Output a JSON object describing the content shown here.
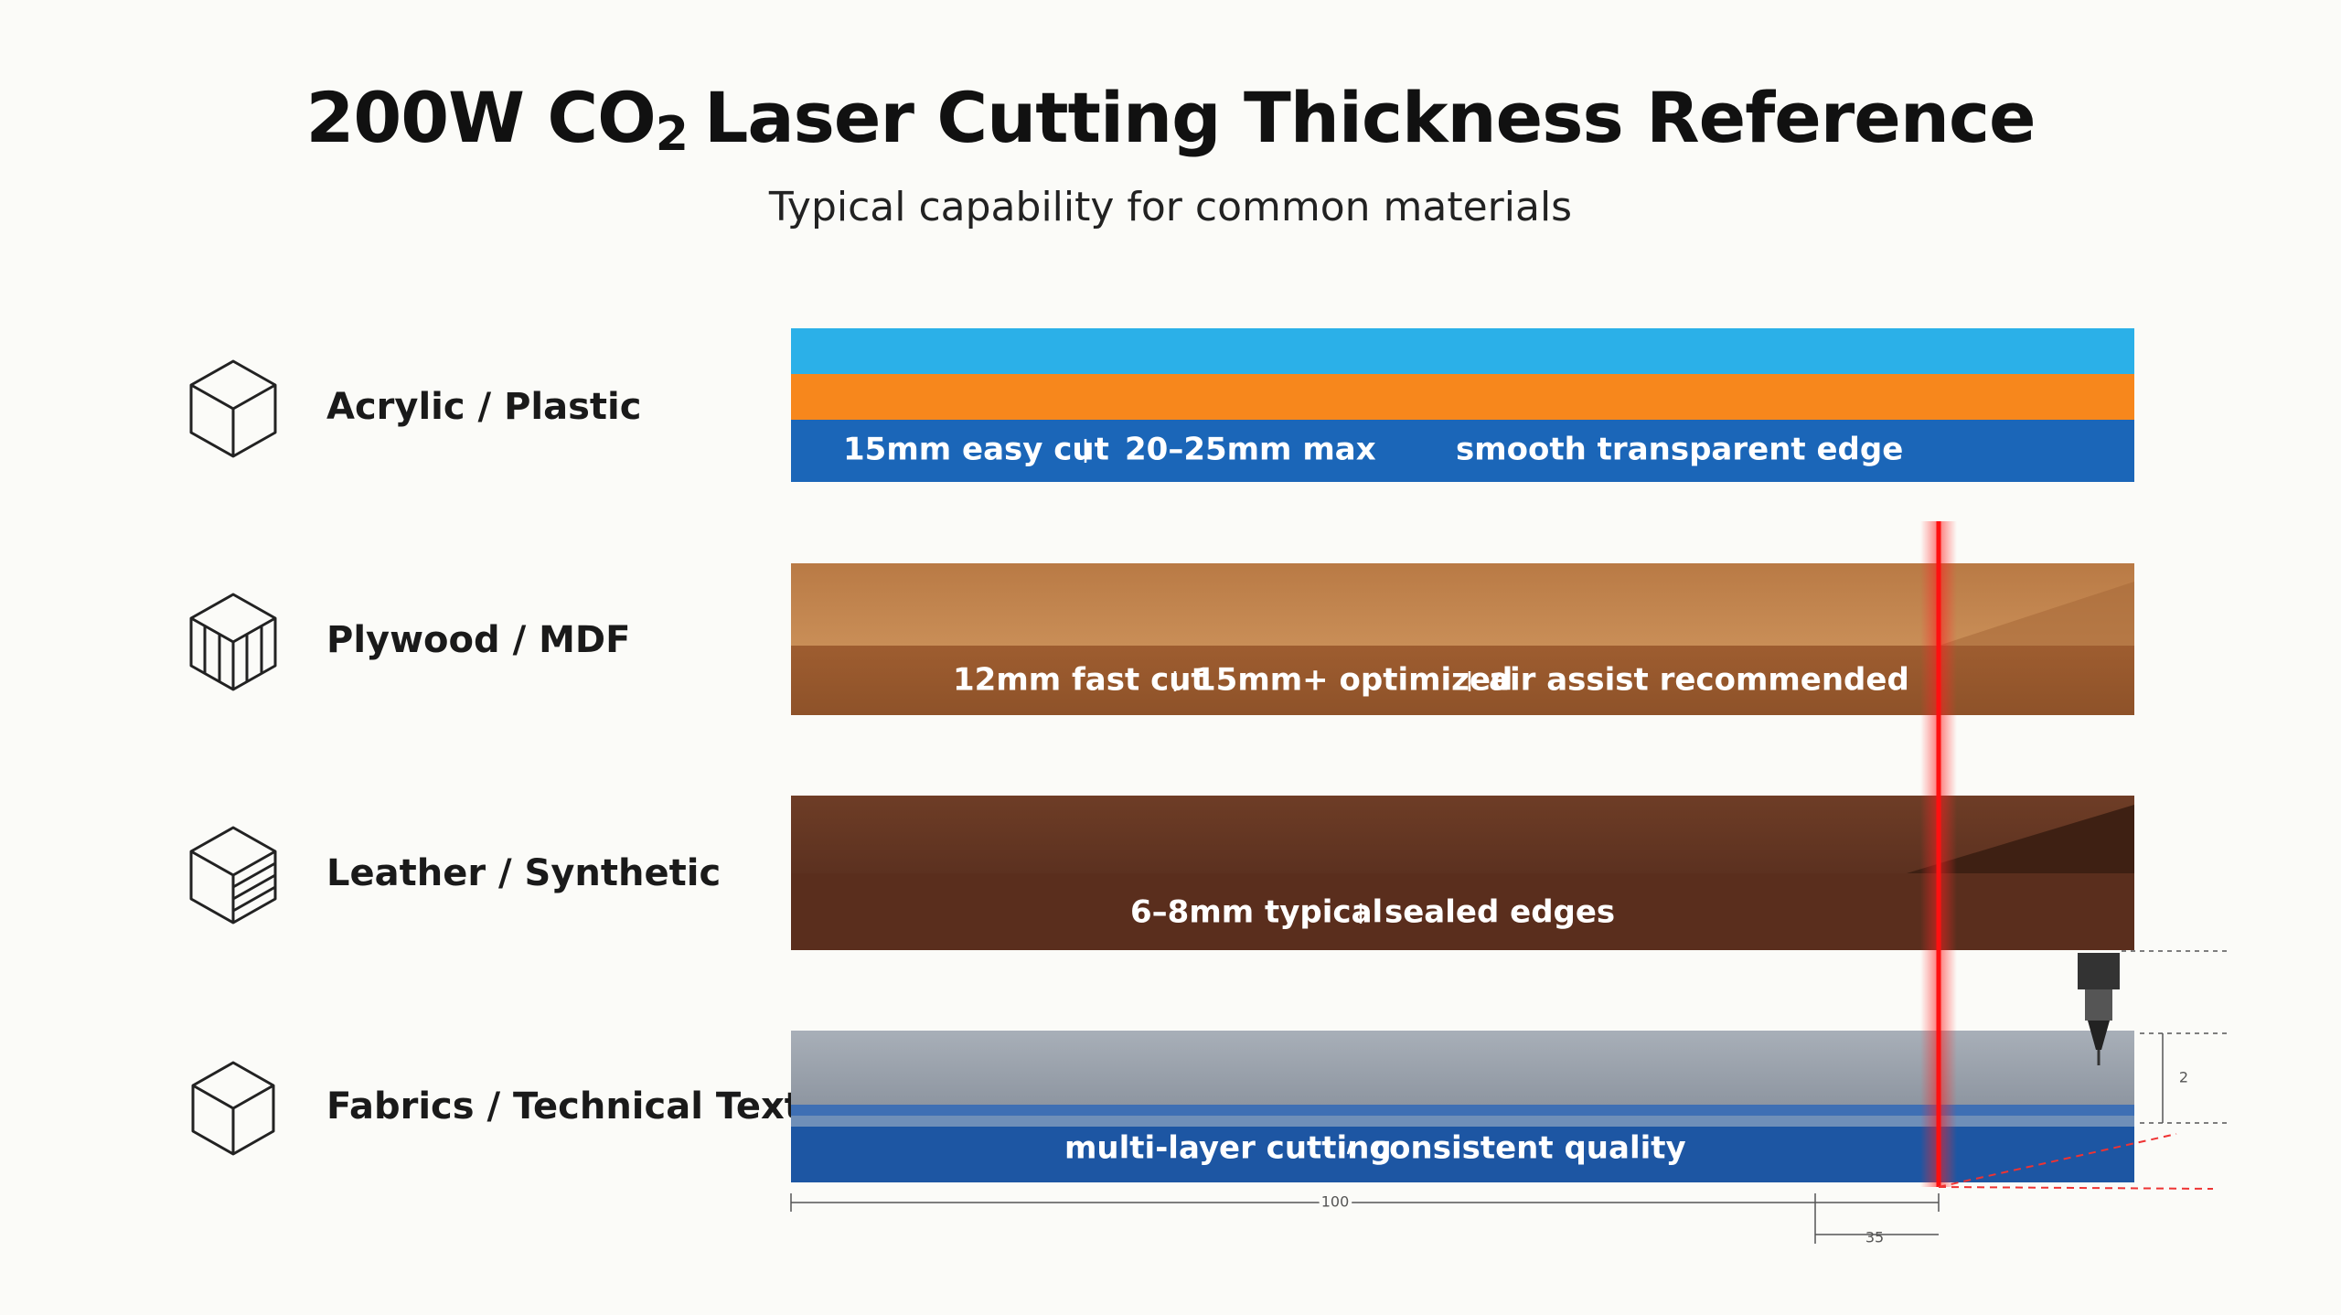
{
  "header": {
    "title": {
      "before": "200W CO",
      "sub": "2",
      "after": "Laser Cutting Thickness Reference"
    },
    "subtitle": "Typical capability for common materials"
  },
  "materials": [
    {
      "label": "Acrylic / Plastic",
      "notes": [
        "15mm easy cut",
        "20–25mm max",
        "smooth transparent edge"
      ]
    },
    {
      "label": "Plywood / MDF",
      "notes": [
        "12mm fast cut",
        "15mm+ optimized",
        "air assist recommended"
      ]
    },
    {
      "label": "Leather / Synthetic",
      "notes": [
        "6–8mm typical",
        "sealed edges"
      ]
    },
    {
      "label": "Fabrics / Technical Textiles",
      "notes": [
        "multi-layer cutting",
        "consistent quality"
      ]
    }
  ],
  "dimensions": {
    "width": "100",
    "height": "2",
    "offset": "35"
  }
}
